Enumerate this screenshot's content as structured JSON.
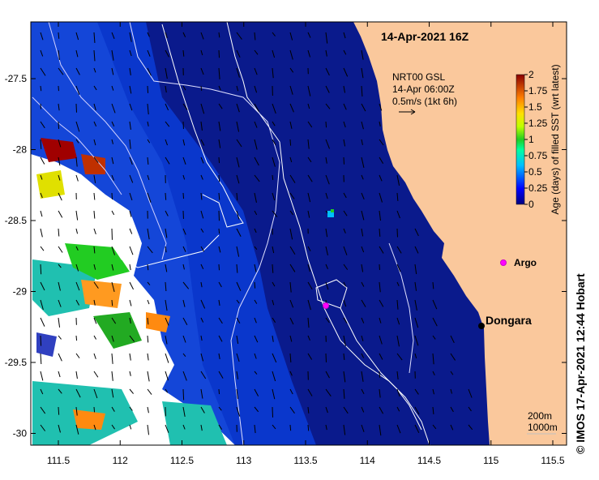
{
  "map": {
    "timestamp": "14-Apr-2021 16Z",
    "current_legend": {
      "line1": "NRT00 GSL",
      "line2": "14-Apr 06:00Z",
      "line3": "0.5m/s (1kt 6h)"
    },
    "colorbar": {
      "title": "Age (days) of filled SST (wrt latest)",
      "ticks": [
        "2",
        "1.75",
        "1.5",
        "1.25",
        "1",
        "0.75",
        "0.5",
        "0.25",
        "0"
      ]
    },
    "y_ticks": [
      "-27.5",
      "-28",
      "-28.5",
      "-29",
      "-29.5",
      "-30"
    ],
    "x_ticks": [
      "111.5",
      "112",
      "112.5",
      "113",
      "113.5",
      "114",
      "114.5",
      "115",
      "115.5"
    ],
    "places": {
      "dongara": "Dongara",
      "argo": "Argo"
    },
    "contours": {
      "c200": "200m",
      "c1000": "1000m"
    },
    "credit": "© IMOS 17-Apr-2021 12:44 Hobart",
    "colors": {
      "land": "#fac89c",
      "ocean_deep": "#0a1a8c",
      "ocean_mid": "#0a37cc",
      "argo": "#ff00ff"
    }
  }
}
